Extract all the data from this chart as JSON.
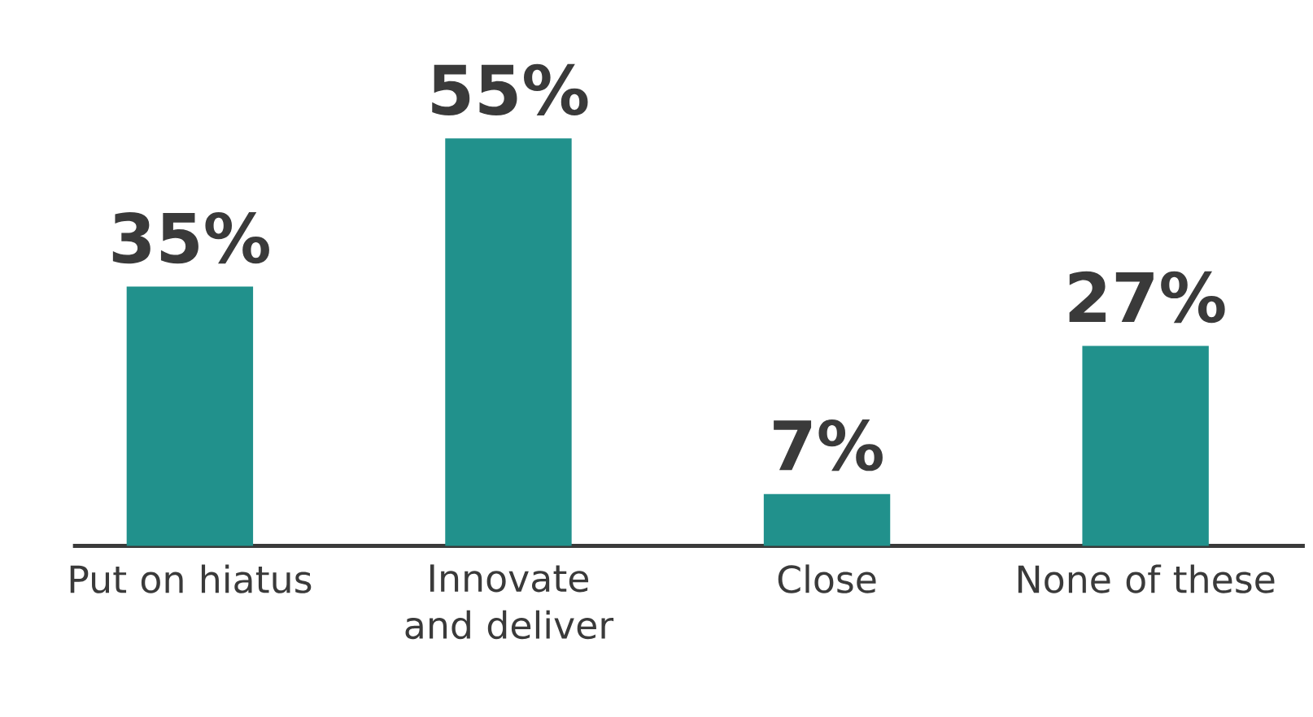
{
  "chart_data": {
    "type": "bar",
    "categories": [
      "Put on hiatus",
      "Innovate and deliver",
      "Close",
      "None of these"
    ],
    "values": [
      35,
      55,
      7,
      27
    ],
    "color": "#21918c",
    "value_labels": [
      "35%",
      "55%",
      "7%",
      "27%"
    ]
  }
}
